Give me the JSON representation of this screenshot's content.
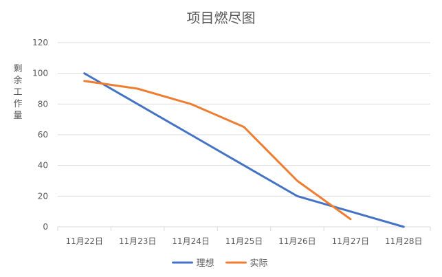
{
  "chart_data": {
    "type": "line",
    "title": "项目燃尽图",
    "ylabel": "剩余工作量",
    "xlabel": "",
    "categories": [
      "11月22日",
      "11月23日",
      "11月24日",
      "11月25日",
      "11月26日",
      "11月27日",
      "11月28日"
    ],
    "ylim": [
      0,
      120
    ],
    "yticks": [
      0,
      20,
      40,
      60,
      80,
      100,
      120
    ],
    "grid": true,
    "legend_position": "bottom",
    "series": [
      {
        "name": "理想",
        "color": "#4472c4",
        "values": [
          100,
          80,
          60,
          40,
          20,
          10,
          0
        ]
      },
      {
        "name": "实际",
        "color": "#ed7d31",
        "values": [
          95,
          90,
          80,
          65,
          30,
          5,
          null
        ]
      }
    ]
  }
}
